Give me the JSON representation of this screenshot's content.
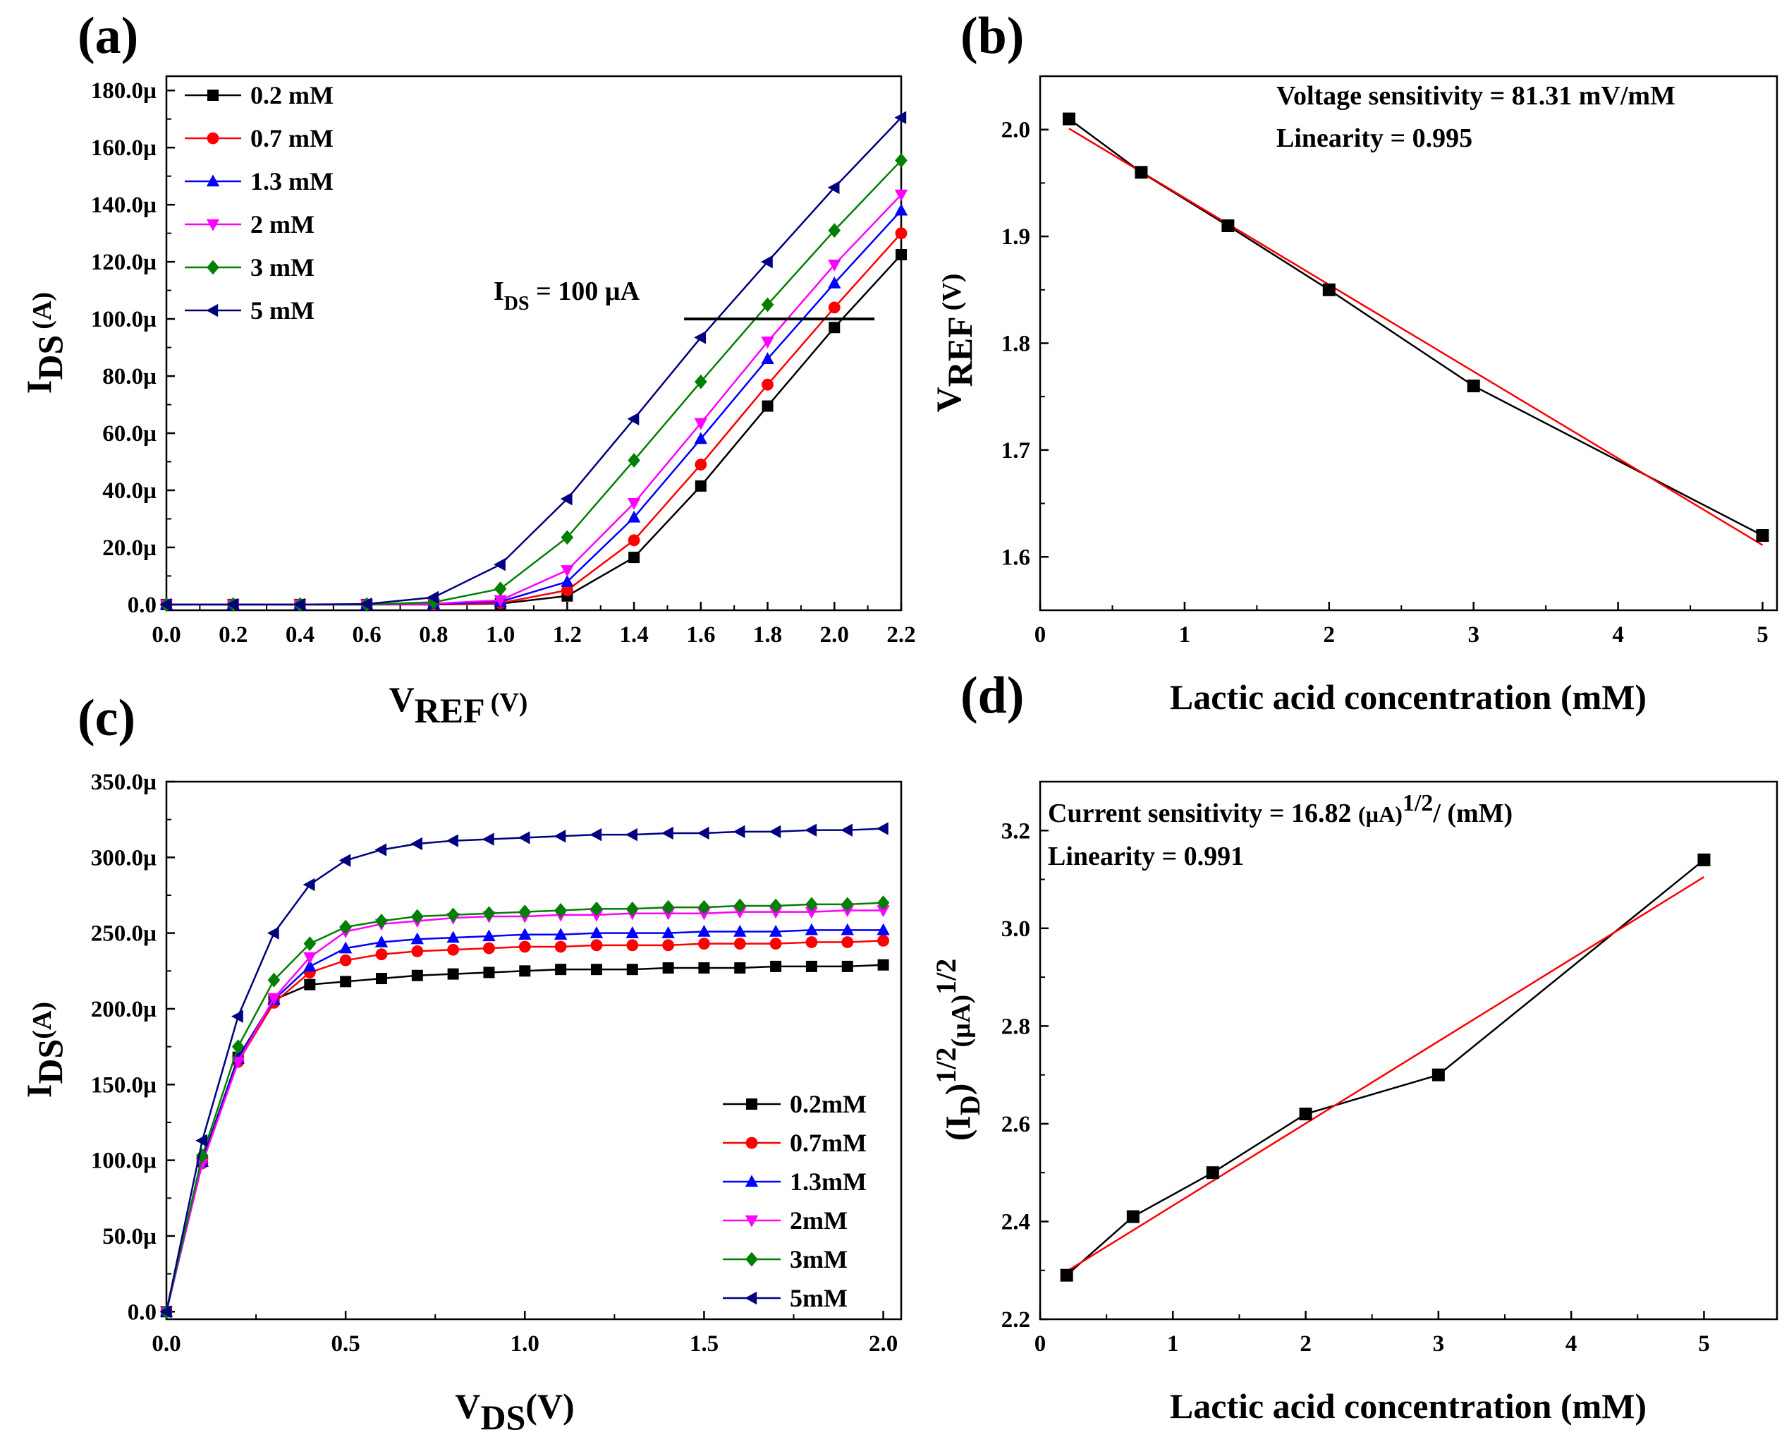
{
  "chart_data": [
    {
      "id": "a",
      "type": "line",
      "panel_label": "(a)",
      "xlabel": {
        "main": "V",
        "sub": "REF",
        "unit": "(V)"
      },
      "ylabel": {
        "main": "I",
        "sub": "DS",
        "unit": "(A)"
      },
      "xlim": [
        0,
        2.2
      ],
      "ylim": [
        -2,
        185
      ],
      "xticks": [
        0,
        0.2,
        0.4,
        0.6,
        0.8,
        1.0,
        1.2,
        1.4,
        1.6,
        1.8,
        2.0,
        2.2
      ],
      "xtick_labels": [
        "0.0",
        "0.2",
        "0.4",
        "0.6",
        "0.8",
        "1.0",
        "1.2",
        "1.4",
        "1.6",
        "1.8",
        "2.0",
        "2.2"
      ],
      "yticks": [
        0,
        20,
        40,
        60,
        80,
        100,
        120,
        140,
        160,
        180
      ],
      "ytick_labels": [
        "0.0",
        "20.0µ",
        "40.0µ",
        "60.0µ",
        "80.0µ",
        "100.0µ",
        "120.0µ",
        "140.0µ",
        "160.0µ",
        "180.0µ"
      ],
      "x": [
        0,
        0.2,
        0.4,
        0.6,
        0.8,
        1.0,
        1.2,
        1.4,
        1.6,
        1.8,
        2.0,
        2.2
      ],
      "series": [
        {
          "name": "0.2 mM",
          "label": "0.2 mM",
          "color": "#000000",
          "marker": "square",
          "values": [
            0,
            0,
            0,
            0,
            0,
            0.3,
            3,
            16.5,
            41.5,
            69.5,
            97,
            122.5
          ]
        },
        {
          "name": "0.7 mM",
          "label": "0.7 mM",
          "color": "#ff0000",
          "marker": "circle",
          "values": [
            0,
            0,
            0,
            0,
            0,
            0.5,
            5,
            22.5,
            49,
            77,
            104,
            130
          ]
        },
        {
          "name": "1.3 mM",
          "label": "1.3 mM",
          "color": "#0000ff",
          "marker": "triangle-up",
          "values": [
            0,
            0,
            0,
            0,
            0.2,
            1,
            8,
            30.5,
            58,
            86,
            112.5,
            138
          ]
        },
        {
          "name": "2 mM",
          "label": "  2  mM",
          "color": "#ff00ff",
          "marker": "triangle-down",
          "values": [
            0,
            0,
            0,
            0,
            0.3,
            1.5,
            12,
            35.5,
            63.5,
            92,
            119,
            143.5
          ]
        },
        {
          "name": "3 mM",
          "label": "  3  mM",
          "color": "#008000",
          "marker": "diamond",
          "values": [
            0,
            0,
            0,
            0,
            0.8,
            5.5,
            23.5,
            50.5,
            78,
            105,
            131,
            155.5
          ]
        },
        {
          "name": "5 mM",
          "label": "  5  mM",
          "color": "#000080",
          "marker": "triangle-left",
          "values": [
            0,
            0,
            0,
            0.2,
            2.5,
            14,
            37,
            65,
            93.5,
            120,
            146,
            170.5
          ]
        }
      ],
      "reference_line": {
        "y": 100,
        "x_from": 1.55,
        "x_to": 2.12
      },
      "annotation": {
        "main": "I",
        "sub": "DS",
        "rest": " = 100 µA"
      }
    },
    {
      "id": "b",
      "type": "line",
      "panel_label": "(b)",
      "xlabel": "Lactic acid concentration (mM)",
      "ylabel": {
        "main": "V",
        "sub": "REF",
        "unit": "(V)"
      },
      "xlim": [
        0,
        5.1
      ],
      "ylim": [
        1.55,
        2.05
      ],
      "xticks": [
        0,
        1,
        2,
        3,
        4,
        5
      ],
      "xtick_labels": [
        "0",
        "1",
        "2",
        "3",
        "4",
        "5"
      ],
      "yticks": [
        1.6,
        1.7,
        1.8,
        1.9,
        2.0
      ],
      "ytick_labels": [
        "1.6",
        "1.7",
        "1.8",
        "1.9",
        "2.0"
      ],
      "x": [
        0.2,
        0.7,
        1.3,
        2,
        3,
        5
      ],
      "values": [
        2.01,
        1.96,
        1.91,
        1.85,
        1.76,
        1.62
      ],
      "fit": {
        "x": [
          0.2,
          5
        ],
        "y": [
          2.001,
          1.611
        ]
      },
      "annotations": [
        "Voltage sensitivity = 81.31 mV/mM",
        "Linearity = 0.995"
      ]
    },
    {
      "id": "c",
      "type": "line",
      "panel_label": "(c)",
      "xlabel": {
        "main": "V",
        "sub": "DS",
        "unit": "(V)"
      },
      "ylabel": {
        "main": "I",
        "sub": "DS",
        "unit": "(A)"
      },
      "xlim": [
        0,
        2.05
      ],
      "ylim": [
        -5,
        350
      ],
      "xticks": [
        0,
        0.5,
        1.0,
        1.5,
        2.0
      ],
      "xtick_labels": [
        "0.0",
        "0.5",
        "1.0",
        "1.5",
        "2.0"
      ],
      "yticks": [
        0,
        50,
        100,
        150,
        200,
        250,
        300,
        350
      ],
      "ytick_labels": [
        "0.0",
        "50.0µ",
        "100.0µ",
        "150.0µ",
        "200.0µ",
        "250.0µ",
        "300.0µ",
        "350.0µ"
      ],
      "x": [
        0,
        0.1,
        0.2,
        0.3,
        0.4,
        0.5,
        0.6,
        0.7,
        0.8,
        0.9,
        1.0,
        1.1,
        1.2,
        1.3,
        1.4,
        1.5,
        1.6,
        1.7,
        1.8,
        1.9,
        2.0
      ],
      "series": [
        {
          "name": "0.2mM",
          "label": "0.2mM",
          "color": "#000000",
          "marker": "square",
          "values": [
            0,
            100,
            168,
            206,
            216,
            218,
            220,
            222,
            223,
            224,
            225,
            226,
            226,
            226,
            227,
            227,
            227,
            228,
            228,
            228,
            229
          ]
        },
        {
          "name": "0.7mM",
          "label": "0.7mM",
          "color": "#ff0000",
          "marker": "circle",
          "values": [
            0,
            98,
            165,
            204,
            224,
            232,
            236,
            238,
            239,
            240,
            241,
            241,
            242,
            242,
            242,
            243,
            243,
            243,
            244,
            244,
            245
          ]
        },
        {
          "name": "1.3mM",
          "label": "1.3mM",
          "color": "#0000ff",
          "marker": "triangle-up",
          "values": [
            0,
            99,
            167,
            206,
            228,
            240,
            244,
            246,
            247,
            248,
            249,
            249,
            250,
            250,
            250,
            251,
            251,
            251,
            252,
            252,
            252
          ]
        },
        {
          "name": "2mM",
          "label": "2mM",
          "color": "#ff00ff",
          "marker": "triangle-down",
          "values": [
            0,
            98,
            165,
            207,
            234,
            251,
            256,
            258,
            260,
            261,
            261,
            262,
            262,
            263,
            263,
            263,
            264,
            264,
            264,
            265,
            265
          ]
        },
        {
          "name": "3mM",
          "label": "3mM",
          "color": "#008000",
          "marker": "diamond",
          "values": [
            0,
            103,
            175,
            219,
            243,
            254,
            258,
            261,
            262,
            263,
            264,
            265,
            266,
            266,
            267,
            267,
            268,
            268,
            269,
            269,
            270
          ]
        },
        {
          "name": "5mM",
          "label": "5mM",
          "color": "#000080",
          "marker": "triangle-left",
          "values": [
            0,
            113,
            195,
            250,
            282,
            298,
            305,
            309,
            311,
            312,
            313,
            314,
            315,
            315,
            316,
            316,
            317,
            317,
            318,
            318,
            319
          ]
        }
      ]
    },
    {
      "id": "d",
      "type": "line",
      "panel_label": "(d)",
      "xlabel": "Lactic acid concentration (mM)",
      "ylabel": {
        "part1": "(I",
        "sub1": "D",
        "part2": ")",
        "sup1": "1/2",
        "part3": "(µA)",
        "sup2": "1/2"
      },
      "xlim": [
        0,
        5.55
      ],
      "ylim": [
        2.2,
        3.3
      ],
      "xticks": [
        0,
        1,
        2,
        3,
        4,
        5
      ],
      "xtick_labels": [
        "0",
        "1",
        "2",
        "3",
        "4",
        "5"
      ],
      "yticks": [
        2.2,
        2.4,
        2.6,
        2.8,
        3.0,
        3.2
      ],
      "ytick_labels": [
        "2.2",
        "2.4",
        "2.6",
        "2.8",
        "3.0",
        "3.2"
      ],
      "x": [
        0.2,
        0.7,
        1.3,
        2,
        3,
        5
      ],
      "values": [
        2.29,
        2.41,
        2.5,
        2.62,
        2.7,
        3.14
      ],
      "fit": {
        "x": [
          0.2,
          5
        ],
        "y": [
          2.298,
          3.105
        ]
      },
      "annotations": {
        "line1_prefix": "Current sensitivity = 16.82 ",
        "line1_unit": "(µA)",
        "line1_sup": "1/2",
        "line1_suffix": "/ (mM)",
        "line2": "Linearity = 0.991"
      }
    }
  ]
}
